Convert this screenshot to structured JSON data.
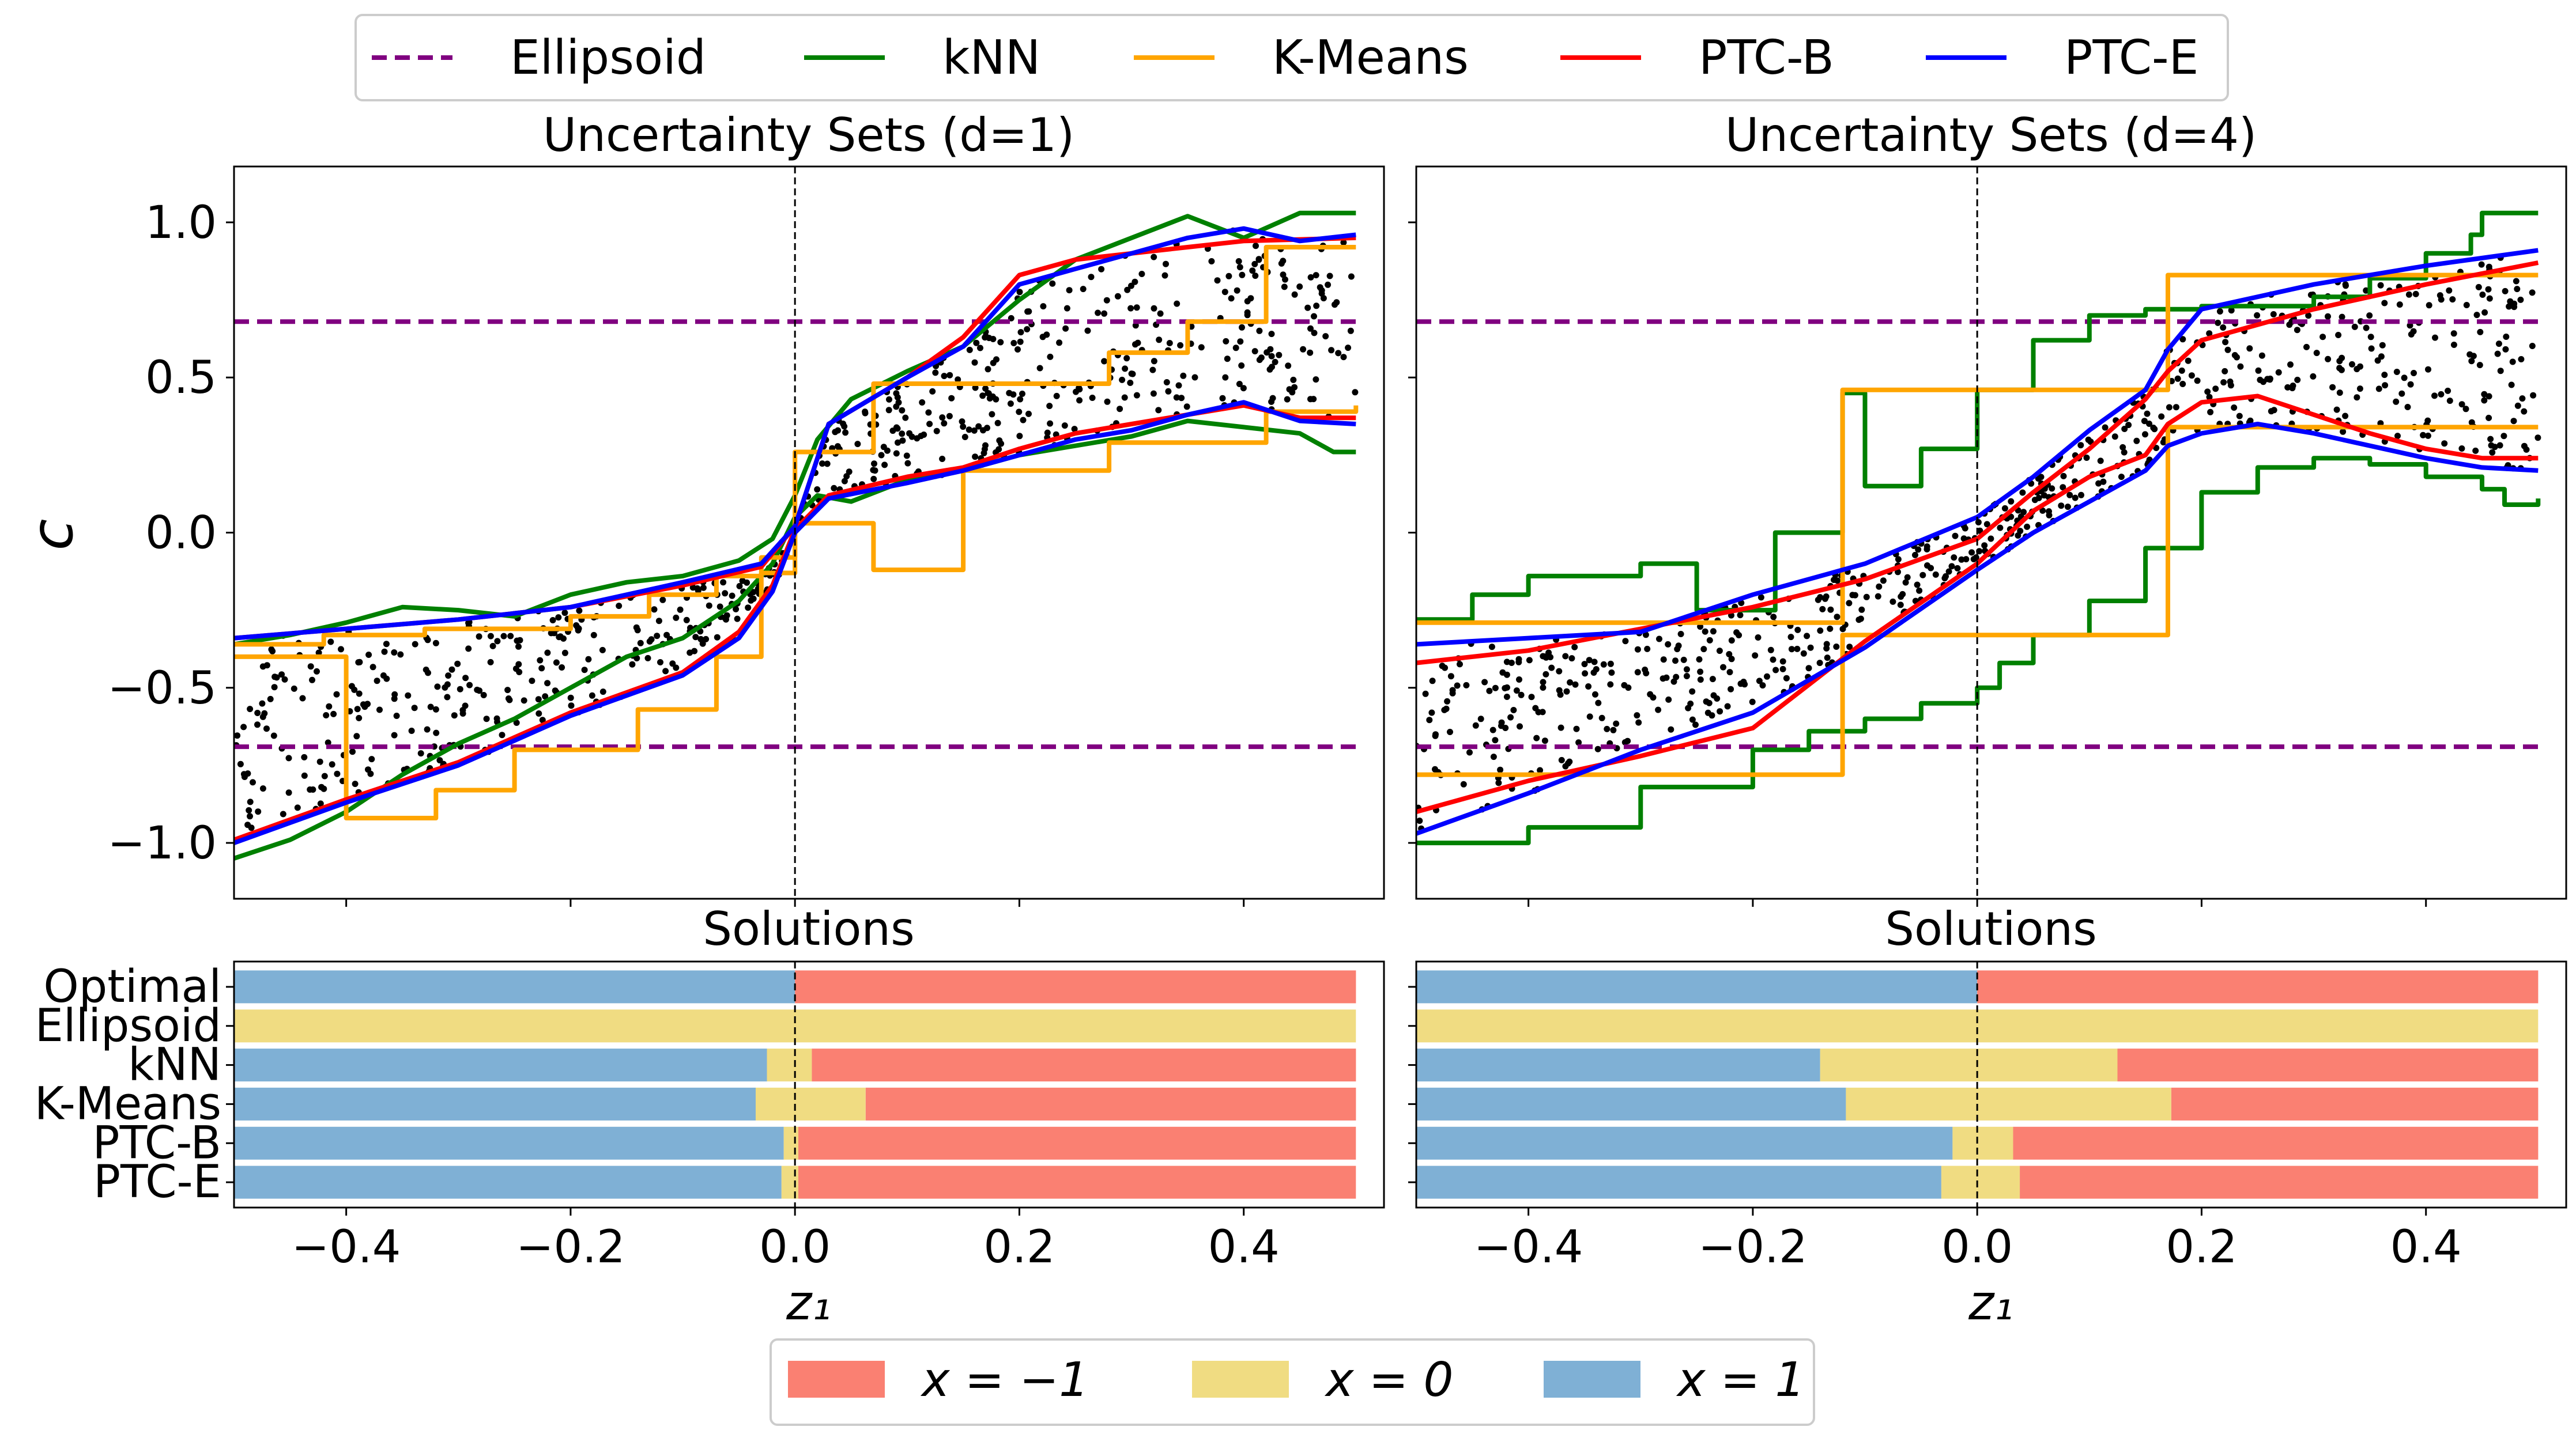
{
  "legend_top": [
    {
      "label": "Ellipsoid",
      "color": "#800080",
      "dash": true
    },
    {
      "label": "kNN",
      "color": "#008000",
      "dash": false
    },
    {
      "label": "K-Means",
      "color": "#FFA500",
      "dash": false
    },
    {
      "label": "PTC-B",
      "color": "#FF0000",
      "dash": false
    },
    {
      "label": "PTC-E",
      "color": "#0000FF",
      "dash": false
    }
  ],
  "legend_bottom": [
    {
      "label": "x = −1",
      "color": "#FA8072"
    },
    {
      "label": "x = 0",
      "color": "#F0DC82"
    },
    {
      "label": "x = 1",
      "color": "#7FB0D5"
    }
  ],
  "ylabel": "c",
  "xlabel": "z₁",
  "chart_data": [
    {
      "type": "line",
      "title": "Uncertainty Sets (d=1)",
      "xlim": [
        -0.5,
        0.525
      ],
      "ylim": [
        -1.18,
        1.18
      ],
      "yticks": [
        1.0,
        0.5,
        0.0,
        -0.5,
        -1.0
      ],
      "ytick_labels": [
        "1.0",
        "0.5",
        "0.0",
        "−0.5",
        "−1.0"
      ],
      "xticks": [
        -0.4,
        -0.2,
        0.0,
        0.2,
        0.4
      ],
      "vline": 0.0,
      "series": [
        {
          "name": "Ellipsoid",
          "color": "#800080",
          "dash": true,
          "x": [
            -0.5,
            0.5
          ],
          "y": [
            0.68,
            0.68
          ]
        },
        {
          "name": "Ellipsoid",
          "color": "#800080",
          "dash": true,
          "x": [
            -0.5,
            0.5
          ],
          "y": [
            -0.69,
            -0.69
          ]
        },
        {
          "name": "kNN",
          "color": "#008000",
          "x": [
            -0.5,
            -0.45,
            -0.4,
            -0.35,
            -0.3,
            -0.25,
            -0.2,
            -0.15,
            -0.1,
            -0.05,
            -0.02,
            0.0,
            0.02,
            0.05,
            0.1,
            0.15,
            0.2,
            0.25,
            0.3,
            0.35,
            0.4,
            0.45,
            0.5
          ],
          "y": [
            -0.36,
            -0.33,
            -0.29,
            -0.24,
            -0.25,
            -0.27,
            -0.2,
            -0.16,
            -0.14,
            -0.09,
            -0.02,
            0.12,
            0.3,
            0.43,
            0.52,
            0.6,
            0.75,
            0.88,
            0.95,
            1.02,
            0.95,
            1.03,
            1.03
          ]
        },
        {
          "name": "kNN",
          "color": "#008000",
          "x": [
            -0.5,
            -0.45,
            -0.4,
            -0.35,
            -0.3,
            -0.25,
            -0.2,
            -0.15,
            -0.1,
            -0.05,
            -0.02,
            0.0,
            0.02,
            0.05,
            0.1,
            0.15,
            0.2,
            0.25,
            0.3,
            0.35,
            0.4,
            0.45,
            0.48,
            0.5
          ],
          "y": [
            -1.05,
            -0.99,
            -0.9,
            -0.78,
            -0.68,
            -0.6,
            -0.5,
            -0.4,
            -0.34,
            -0.22,
            -0.1,
            0.05,
            0.12,
            0.1,
            0.17,
            0.2,
            0.25,
            0.28,
            0.31,
            0.36,
            0.34,
            0.32,
            0.26,
            0.26
          ]
        },
        {
          "name": "K-Means",
          "color": "#FFA500",
          "step": true,
          "x": [
            -0.5,
            -0.42,
            -0.33,
            -0.2,
            -0.13,
            -0.07,
            -0.03,
            0.0,
            0.03,
            0.07,
            0.15,
            0.28,
            0.35,
            0.42,
            0.5
          ],
          "y": [
            -0.36,
            -0.33,
            -0.31,
            -0.27,
            -0.2,
            -0.14,
            -0.08,
            0.26,
            0.26,
            0.48,
            0.48,
            0.58,
            0.68,
            0.92,
            0.92
          ]
        },
        {
          "name": "K-Means",
          "color": "#FFA500",
          "step": true,
          "x": [
            -0.5,
            -0.45,
            -0.4,
            -0.32,
            -0.25,
            -0.14,
            -0.07,
            -0.03,
            0.0,
            0.03,
            0.07,
            0.15,
            0.28,
            0.42,
            0.5
          ],
          "y": [
            -0.4,
            -0.4,
            -0.92,
            -0.83,
            -0.7,
            -0.57,
            -0.4,
            -0.13,
            0.03,
            0.03,
            -0.12,
            0.2,
            0.29,
            0.39,
            0.41
          ]
        },
        {
          "name": "PTC-B",
          "color": "#FF0000",
          "x": [
            -0.5,
            -0.4,
            -0.3,
            -0.2,
            -0.1,
            -0.03,
            0.0,
            0.03,
            0.1,
            0.15,
            0.2,
            0.25,
            0.3,
            0.35,
            0.4,
            0.5
          ],
          "y": [
            -0.34,
            -0.31,
            -0.28,
            -0.24,
            -0.17,
            -0.11,
            0.02,
            0.35,
            0.5,
            0.63,
            0.83,
            0.88,
            0.9,
            0.92,
            0.94,
            0.95
          ]
        },
        {
          "name": "PTC-B",
          "color": "#FF0000",
          "x": [
            -0.5,
            -0.4,
            -0.3,
            -0.2,
            -0.1,
            -0.05,
            -0.02,
            0.0,
            0.03,
            0.1,
            0.15,
            0.2,
            0.25,
            0.3,
            0.35,
            0.4,
            0.45,
            0.5
          ],
          "y": [
            -0.99,
            -0.86,
            -0.74,
            -0.58,
            -0.45,
            -0.32,
            -0.17,
            0.01,
            0.12,
            0.18,
            0.21,
            0.27,
            0.32,
            0.35,
            0.38,
            0.41,
            0.37,
            0.37
          ]
        },
        {
          "name": "PTC-E",
          "color": "#0000FF",
          "x": [
            -0.5,
            -0.4,
            -0.3,
            -0.2,
            -0.1,
            -0.03,
            0.0,
            0.03,
            0.1,
            0.15,
            0.2,
            0.25,
            0.3,
            0.35,
            0.4,
            0.45,
            0.5
          ],
          "y": [
            -0.34,
            -0.31,
            -0.28,
            -0.24,
            -0.16,
            -0.1,
            0.02,
            0.35,
            0.5,
            0.6,
            0.8,
            0.85,
            0.9,
            0.95,
            0.98,
            0.94,
            0.96
          ]
        },
        {
          "name": "PTC-E",
          "color": "#0000FF",
          "x": [
            -0.5,
            -0.4,
            -0.3,
            -0.2,
            -0.1,
            -0.05,
            -0.02,
            0.0,
            0.03,
            0.1,
            0.15,
            0.2,
            0.25,
            0.3,
            0.35,
            0.4,
            0.45,
            0.5
          ],
          "y": [
            -1.0,
            -0.87,
            -0.75,
            -0.59,
            -0.46,
            -0.34,
            -0.19,
            0.0,
            0.11,
            0.16,
            0.2,
            0.25,
            0.3,
            0.33,
            0.38,
            0.42,
            0.36,
            0.35
          ]
        }
      ],
      "scatter": {
        "color": "#000000",
        "count": 700,
        "band_lower": "PTC-E 2",
        "band_upper": "PTC-E 1"
      }
    },
    {
      "type": "line",
      "title": "Uncertainty Sets (d=4)",
      "xlim": [
        -0.5,
        0.525
      ],
      "ylim": [
        -1.18,
        1.18
      ],
      "yticks": [
        1.0,
        0.5,
        0.0,
        -0.5,
        -1.0
      ],
      "xticks": [
        -0.4,
        -0.2,
        0.0,
        0.2,
        0.4
      ],
      "vline": 0.0,
      "series": [
        {
          "name": "Ellipsoid",
          "color": "#800080",
          "dash": true,
          "x": [
            -0.5,
            0.5
          ],
          "y": [
            0.68,
            0.68
          ]
        },
        {
          "name": "Ellipsoid",
          "color": "#800080",
          "dash": true,
          "x": [
            -0.5,
            0.5
          ],
          "y": [
            -0.69,
            -0.69
          ]
        },
        {
          "name": "kNN",
          "color": "#008000",
          "step": true,
          "x": [
            -0.5,
            -0.45,
            -0.4,
            -0.3,
            -0.25,
            -0.18,
            -0.12,
            -0.1,
            -0.05,
            0.0,
            0.05,
            0.1,
            0.15,
            0.2,
            0.25,
            0.3,
            0.35,
            0.4,
            0.44,
            0.45,
            0.5
          ],
          "y": [
            -0.28,
            -0.2,
            -0.14,
            -0.1,
            -0.25,
            0.0,
            0.45,
            0.15,
            0.27,
            0.46,
            0.62,
            0.7,
            0.72,
            0.73,
            0.73,
            0.76,
            0.82,
            0.9,
            0.96,
            1.03,
            1.03
          ]
        },
        {
          "name": "kNN",
          "color": "#008000",
          "step": true,
          "x": [
            -0.5,
            -0.4,
            -0.3,
            -0.2,
            -0.15,
            -0.1,
            -0.05,
            0.0,
            0.02,
            0.05,
            0.1,
            0.15,
            0.2,
            0.25,
            0.3,
            0.35,
            0.4,
            0.45,
            0.47,
            0.5
          ],
          "y": [
            -1.0,
            -0.95,
            -0.82,
            -0.7,
            -0.64,
            -0.6,
            -0.55,
            -0.5,
            -0.42,
            -0.33,
            -0.22,
            -0.05,
            0.13,
            0.21,
            0.24,
            0.22,
            0.18,
            0.14,
            0.09,
            0.11
          ]
        },
        {
          "name": "K-Means",
          "color": "#FFA500",
          "step": true,
          "x": [
            -0.5,
            -0.12,
            0.17,
            0.5
          ],
          "y": [
            -0.29,
            0.46,
            0.83,
            0.83
          ]
        },
        {
          "name": "K-Means",
          "color": "#FFA500",
          "step": true,
          "x": [
            -0.5,
            -0.12,
            0.17,
            0.5
          ],
          "y": [
            -0.78,
            -0.33,
            0.34,
            0.34
          ]
        },
        {
          "name": "PTC-B",
          "color": "#FF0000",
          "x": [
            -0.5,
            -0.4,
            -0.3,
            -0.2,
            -0.1,
            0.0,
            0.05,
            0.1,
            0.15,
            0.17,
            0.2,
            0.3,
            0.4,
            0.5
          ],
          "y": [
            -0.42,
            -0.38,
            -0.31,
            -0.24,
            -0.15,
            -0.02,
            0.13,
            0.27,
            0.43,
            0.52,
            0.62,
            0.72,
            0.8,
            0.87
          ]
        },
        {
          "name": "PTC-B",
          "color": "#FF0000",
          "x": [
            -0.5,
            -0.4,
            -0.3,
            -0.2,
            -0.1,
            0.0,
            0.05,
            0.1,
            0.15,
            0.17,
            0.2,
            0.25,
            0.3,
            0.35,
            0.4,
            0.45,
            0.5
          ],
          "y": [
            -0.9,
            -0.8,
            -0.72,
            -0.63,
            -0.35,
            -0.1,
            0.07,
            0.18,
            0.25,
            0.35,
            0.42,
            0.44,
            0.38,
            0.32,
            0.27,
            0.24,
            0.24
          ]
        },
        {
          "name": "PTC-E",
          "color": "#0000FF",
          "x": [
            -0.5,
            -0.4,
            -0.3,
            -0.2,
            -0.1,
            0.0,
            0.05,
            0.1,
            0.15,
            0.17,
            0.2,
            0.3,
            0.4,
            0.5
          ],
          "y": [
            -0.36,
            -0.34,
            -0.32,
            -0.2,
            -0.1,
            0.05,
            0.18,
            0.33,
            0.46,
            0.59,
            0.72,
            0.8,
            0.86,
            0.91
          ]
        },
        {
          "name": "PTC-E",
          "color": "#0000FF",
          "x": [
            -0.5,
            -0.4,
            -0.3,
            -0.2,
            -0.1,
            0.0,
            0.05,
            0.1,
            0.15,
            0.17,
            0.2,
            0.25,
            0.3,
            0.35,
            0.4,
            0.45,
            0.5
          ],
          "y": [
            -0.97,
            -0.84,
            -0.7,
            -0.58,
            -0.37,
            -0.12,
            0.0,
            0.1,
            0.2,
            0.28,
            0.32,
            0.35,
            0.32,
            0.28,
            0.24,
            0.21,
            0.2
          ]
        }
      ],
      "scatter": {
        "color": "#000000",
        "count": 700,
        "band_lower": "PTC-E 2",
        "band_upper": "PTC-E 1"
      }
    },
    {
      "type": "bar",
      "title": "Solutions",
      "orientation": "horizontal-stacked",
      "xlim": [
        -0.5,
        0.525
      ],
      "xticks": [
        -0.4,
        -0.2,
        0.0,
        0.2,
        0.4
      ],
      "xtick_labels": [
        "−0.4",
        "−0.2",
        "0.0",
        "0.2",
        "0.4"
      ],
      "categories": [
        "Optimal",
        "Ellipsoid",
        "kNN",
        "K-Means",
        "PTC-B",
        "PTC-E"
      ],
      "segments": [
        [
          {
            "from": -0.5,
            "to": 0.0,
            "x": 1
          },
          {
            "from": 0.0,
            "to": 0.5,
            "x": -1
          }
        ],
        [
          {
            "from": -0.5,
            "to": 0.5,
            "x": 0
          }
        ],
        [
          {
            "from": -0.5,
            "to": -0.025,
            "x": 1
          },
          {
            "from": -0.025,
            "to": 0.015,
            "x": 0
          },
          {
            "from": 0.015,
            "to": 0.5,
            "x": -1
          }
        ],
        [
          {
            "from": -0.5,
            "to": -0.035,
            "x": 1
          },
          {
            "from": -0.035,
            "to": 0.063,
            "x": 0
          },
          {
            "from": 0.063,
            "to": 0.5,
            "x": -1
          }
        ],
        [
          {
            "from": -0.5,
            "to": -0.01,
            "x": 1
          },
          {
            "from": -0.01,
            "to": 0.003,
            "x": 0
          },
          {
            "from": 0.003,
            "to": 0.5,
            "x": -1
          }
        ],
        [
          {
            "from": -0.5,
            "to": -0.012,
            "x": 1
          },
          {
            "from": -0.012,
            "to": 0.003,
            "x": 0
          },
          {
            "from": 0.003,
            "to": 0.5,
            "x": -1
          }
        ]
      ],
      "vline": 0.0
    },
    {
      "type": "bar",
      "title": "Solutions",
      "orientation": "horizontal-stacked",
      "xlim": [
        -0.5,
        0.525
      ],
      "xticks": [
        -0.4,
        -0.2,
        0.0,
        0.2,
        0.4
      ],
      "xtick_labels": [
        "−0.4",
        "−0.2",
        "0.0",
        "0.2",
        "0.4"
      ],
      "categories": [
        "Optimal",
        "Ellipsoid",
        "kNN",
        "K-Means",
        "PTC-B",
        "PTC-E"
      ],
      "segments": [
        [
          {
            "from": -0.5,
            "to": 0.0,
            "x": 1
          },
          {
            "from": 0.0,
            "to": 0.5,
            "x": -1
          }
        ],
        [
          {
            "from": -0.5,
            "to": 0.5,
            "x": 0
          }
        ],
        [
          {
            "from": -0.5,
            "to": -0.14,
            "x": 1
          },
          {
            "from": -0.14,
            "to": 0.125,
            "x": 0
          },
          {
            "from": 0.125,
            "to": 0.5,
            "x": -1
          }
        ],
        [
          {
            "from": -0.5,
            "to": -0.117,
            "x": 1
          },
          {
            "from": -0.117,
            "to": 0.173,
            "x": 0
          },
          {
            "from": 0.173,
            "to": 0.5,
            "x": -1
          }
        ],
        [
          {
            "from": -0.5,
            "to": -0.022,
            "x": 1
          },
          {
            "from": -0.022,
            "to": 0.032,
            "x": 0
          },
          {
            "from": 0.032,
            "to": 0.5,
            "x": -1
          }
        ],
        [
          {
            "from": -0.5,
            "to": -0.032,
            "x": 1
          },
          {
            "from": -0.032,
            "to": 0.038,
            "x": 0
          },
          {
            "from": 0.038,
            "to": 0.5,
            "x": -1
          }
        ]
      ],
      "vline": 0.0
    }
  ]
}
